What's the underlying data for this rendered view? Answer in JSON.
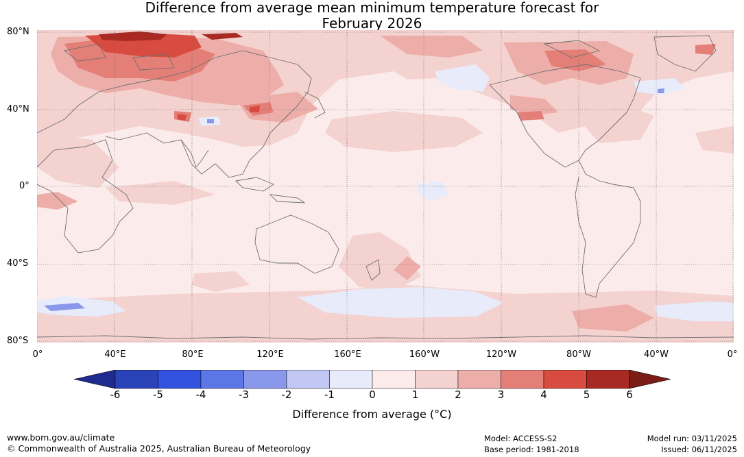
{
  "title": {
    "line1": "Difference from average mean minimum temperature forecast for",
    "line2": "February 2026"
  },
  "map": {
    "lat_labels": [
      "80°N",
      "40°N",
      "0°",
      "40°S",
      "80°S"
    ],
    "lon_labels": [
      "0°",
      "40°E",
      "80°E",
      "120°E",
      "160°E",
      "160°W",
      "120°W",
      "80°W",
      "40°W",
      "0°"
    ]
  },
  "colorbar": {
    "ticks": [
      "-6",
      "-5",
      "-4",
      "-3",
      "-2",
      "-1",
      "0",
      "1",
      "2",
      "3",
      "4",
      "5",
      "6"
    ],
    "colors": [
      "#1f2b8f",
      "#2b43b8",
      "#3352e0",
      "#5c76e6",
      "#8998eb",
      "#c0c8f3",
      "#e8ebfa",
      "#fbeceb",
      "#f4d2d0",
      "#edaeaa",
      "#e47f78",
      "#d84b40",
      "#a82a22",
      "#7a1d16"
    ],
    "label": "Difference from average (°C)"
  },
  "footer": {
    "website": "www.bom.gov.au/climate",
    "copyright": "© Commonwealth of Australia 2025, Australian Bureau of Meteorology",
    "model": "Model: ACCESS-S2",
    "base_period": "Base period: 1981-2018",
    "model_run": "Model run: 03/11/2025",
    "issued": "Issued: 06/11/2025"
  }
}
